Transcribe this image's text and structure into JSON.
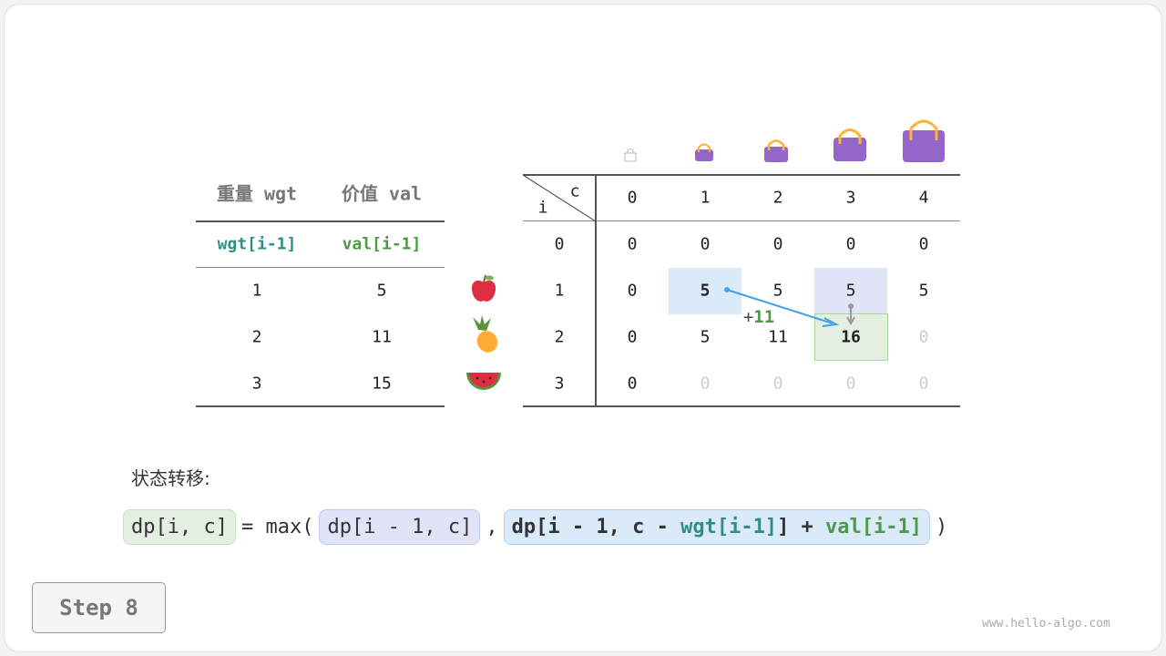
{
  "left_table": {
    "headers": [
      "重量 wgt",
      "价值 val"
    ],
    "subheaders": [
      "wgt[i-1]",
      "val[i-1]"
    ],
    "rows": [
      [
        "1",
        "5"
      ],
      [
        "2",
        "11"
      ],
      [
        "3",
        "15"
      ]
    ],
    "items": [
      "apple-icon",
      "pineapple-icon",
      "watermelon-icon"
    ]
  },
  "dp_table": {
    "row_label": "i",
    "col_label": "c",
    "cols": [
      "0",
      "1",
      "2",
      "3",
      "4"
    ],
    "rows": [
      "0",
      "1",
      "2",
      "3"
    ],
    "cells": [
      [
        "0",
        "0",
        "0",
        "0",
        "0"
      ],
      [
        "0",
        "5",
        "5",
        "5",
        "5"
      ],
      [
        "0",
        "5",
        "11",
        "16",
        "0"
      ],
      [
        "0",
        "0",
        "0",
        "0",
        "0"
      ]
    ],
    "bag_icons": [
      "empty-bag-icon",
      "bag-icon",
      "bag-icon",
      "bag-icon",
      "bag-icon"
    ],
    "annotation": {
      "plus": "+",
      "value": "11"
    }
  },
  "formula": {
    "label": "状态转移:",
    "lhs": "dp[i, c]",
    "eq": "= max(",
    "a": "dp[i - 1, c]",
    "comma": ",",
    "b1": "dp[i - 1, c - ",
    "b2": "wgt[i-1]",
    "b3": "] + ",
    "b4": "val[i-1]",
    "close": ")"
  },
  "step_button": "Step 8",
  "watermark": "www.hello-algo.com",
  "colors": {
    "teal": "#2f8f88",
    "green": "#4e9a47",
    "blue_hl": "#dbeaf8",
    "purple_hl": "#e1e4f7",
    "green_hl": "#e3efe0",
    "bag": "#9466c9"
  }
}
